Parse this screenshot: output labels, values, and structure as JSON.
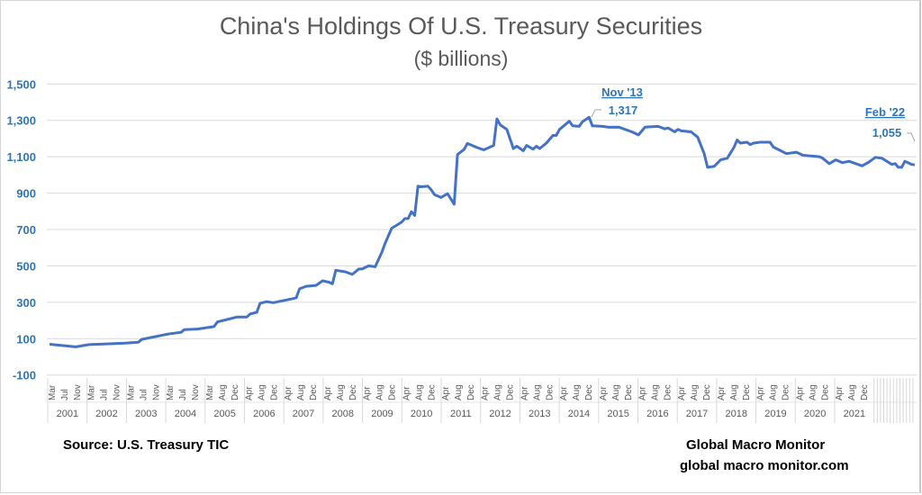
{
  "chart_data": {
    "type": "line",
    "title": "China's Holdings Of U.S. Treasury Securities",
    "subtitle": "($ billions)",
    "ylim": [
      -100,
      1500
    ],
    "yticks": [
      1500,
      1300,
      1100,
      900,
      700,
      500,
      300,
      100,
      -100
    ],
    "ytick_labels": [
      "1,500",
      "1,300",
      "1,100",
      "900",
      "700",
      "500",
      "300",
      "100",
      "-100"
    ],
    "xlim": [
      "2000-03",
      "2022-02"
    ],
    "grid": true,
    "line_color": "#4472c4",
    "label_color": "#2e75b6",
    "x_axis": [
      {
        "year": "2001",
        "months": [
          "Mar",
          "Jul",
          "Nov"
        ]
      },
      {
        "year": "2002",
        "months": [
          "Mar",
          "Jul",
          "Nov"
        ]
      },
      {
        "year": "2003",
        "months": [
          "Mar",
          "Jul",
          "Nov"
        ]
      },
      {
        "year": "2004",
        "months": [
          "Mar",
          "Jul",
          "Nov"
        ]
      },
      {
        "year": "2005",
        "months": [
          "Mar",
          "Aug",
          "Dec"
        ]
      },
      {
        "year": "2006",
        "months": [
          "Apr",
          "Aug",
          "Dec"
        ]
      },
      {
        "year": "2007",
        "months": [
          "Apr",
          "Aug",
          "Dec"
        ]
      },
      {
        "year": "2008",
        "months": [
          "Apr",
          "Aug",
          "Dec"
        ]
      },
      {
        "year": "2009",
        "months": [
          "Apr",
          "Aug",
          "Dec"
        ]
      },
      {
        "year": "2010",
        "months": [
          "Apr",
          "Aug",
          "Dec"
        ]
      },
      {
        "year": "2011",
        "months": [
          "Apr",
          "Aug",
          "Dec"
        ]
      },
      {
        "year": "2012",
        "months": [
          "Apr",
          "Aug",
          "Dec"
        ]
      },
      {
        "year": "2013",
        "months": [
          "Apr",
          "Aug",
          "Dec"
        ]
      },
      {
        "year": "2014",
        "months": [
          "Apr",
          "Aug",
          "Dec"
        ]
      },
      {
        "year": "2015",
        "months": [
          "Apr",
          "Aug",
          "Dec"
        ]
      },
      {
        "year": "2016",
        "months": [
          "Apr",
          "Aug",
          "Dec"
        ]
      },
      {
        "year": "2017",
        "months": [
          "Apr",
          "Aug",
          "Dec"
        ]
      },
      {
        "year": "2018",
        "months": [
          "Apr",
          "Aug",
          "Dec"
        ]
      },
      {
        "year": "2019",
        "months": [
          "Apr",
          "Aug",
          "Dec"
        ]
      },
      {
        "year": "2020",
        "months": [
          "Apr",
          "Aug",
          "Dec"
        ]
      },
      {
        "year": "2021",
        "months": [
          "Apr",
          "Aug",
          "Dec"
        ]
      }
    ],
    "series": [
      {
        "points": [
          [
            "2000-03",
            69
          ],
          [
            "2000-11",
            55
          ],
          [
            "2001-03",
            67
          ],
          [
            "2002-02",
            75
          ],
          [
            "2002-06",
            80
          ],
          [
            "2002-07",
            96
          ],
          [
            "2003-03",
            125
          ],
          [
            "2003-07",
            135
          ],
          [
            "2003-08",
            150
          ],
          [
            "2003-12",
            153
          ],
          [
            "2004-05",
            166
          ],
          [
            "2004-06",
            192
          ],
          [
            "2004-12",
            219
          ],
          [
            "2005-03",
            219
          ],
          [
            "2005-04",
            236
          ],
          [
            "2005-06",
            245
          ],
          [
            "2005-07",
            295
          ],
          [
            "2005-09",
            303
          ],
          [
            "2005-11",
            298
          ],
          [
            "2006-05",
            320
          ],
          [
            "2006-06",
            325
          ],
          [
            "2006-07",
            374
          ],
          [
            "2006-09",
            388
          ],
          [
            "2006-12",
            393
          ],
          [
            "2007-02",
            418
          ],
          [
            "2007-04",
            410
          ],
          [
            "2007-05",
            401
          ],
          [
            "2007-06",
            476
          ],
          [
            "2007-09",
            467
          ],
          [
            "2007-11",
            453
          ],
          [
            "2008-01",
            483
          ],
          [
            "2008-02",
            483
          ],
          [
            "2008-04",
            500
          ],
          [
            "2008-06",
            495
          ],
          [
            "2008-08",
            575
          ],
          [
            "2008-09",
            624
          ],
          [
            "2008-11",
            707
          ],
          [
            "2009-02",
            740
          ],
          [
            "2009-03",
            760
          ],
          [
            "2009-04",
            760
          ],
          [
            "2009-05",
            798
          ],
          [
            "2009-06",
            777
          ],
          [
            "2009-07",
            938
          ],
          [
            "2009-08",
            935
          ],
          [
            "2009-10",
            938
          ],
          [
            "2009-11",
            918
          ],
          [
            "2009-12",
            892
          ],
          [
            "2010-02",
            876
          ],
          [
            "2010-04",
            897
          ],
          [
            "2010-06",
            839
          ],
          [
            "2010-07",
            1112
          ],
          [
            "2010-09",
            1140
          ],
          [
            "2010-10",
            1173
          ],
          [
            "2011-01",
            1150
          ],
          [
            "2011-03",
            1138
          ],
          [
            "2011-06",
            1162
          ],
          [
            "2011-07",
            1308
          ],
          [
            "2011-08",
            1275
          ],
          [
            "2011-10",
            1250
          ],
          [
            "2011-12",
            1145
          ],
          [
            "2012-01",
            1158
          ],
          [
            "2012-03",
            1133
          ],
          [
            "2012-04",
            1162
          ],
          [
            "2012-06",
            1142
          ],
          [
            "2012-07",
            1158
          ],
          [
            "2012-08",
            1145
          ],
          [
            "2012-10",
            1175
          ],
          [
            "2012-12",
            1217
          ],
          [
            "2013-01",
            1217
          ],
          [
            "2013-02",
            1250
          ],
          [
            "2013-05",
            1295
          ],
          [
            "2013-06",
            1270
          ],
          [
            "2013-08",
            1267
          ],
          [
            "2013-09",
            1292
          ],
          [
            "2013-11",
            1317
          ],
          [
            "2013-12",
            1270
          ],
          [
            "2014-03",
            1267
          ],
          [
            "2014-05",
            1262
          ],
          [
            "2014-08",
            1263
          ],
          [
            "2014-12",
            1237
          ],
          [
            "2015-02",
            1220
          ],
          [
            "2015-04",
            1263
          ],
          [
            "2015-08",
            1267
          ],
          [
            "2015-10",
            1253
          ],
          [
            "2015-11",
            1258
          ],
          [
            "2016-01",
            1237
          ],
          [
            "2016-02",
            1250
          ],
          [
            "2016-03",
            1242
          ],
          [
            "2016-06",
            1237
          ],
          [
            "2016-08",
            1208
          ],
          [
            "2016-10",
            1117
          ],
          [
            "2016-11",
            1042
          ],
          [
            "2017-01",
            1047
          ],
          [
            "2017-03",
            1083
          ],
          [
            "2017-05",
            1092
          ],
          [
            "2017-07",
            1150
          ],
          [
            "2017-08",
            1192
          ],
          [
            "2017-09",
            1175
          ],
          [
            "2017-11",
            1180
          ],
          [
            "2017-12",
            1167
          ],
          [
            "2018-01",
            1175
          ],
          [
            "2018-03",
            1180
          ],
          [
            "2018-06",
            1180
          ],
          [
            "2018-07",
            1153
          ],
          [
            "2018-11",
            1117
          ],
          [
            "2019-02",
            1125
          ],
          [
            "2019-04",
            1108
          ],
          [
            "2019-09",
            1100
          ],
          [
            "2019-10",
            1092
          ],
          [
            "2019-12",
            1062
          ],
          [
            "2020-02",
            1083
          ],
          [
            "2020-04",
            1067
          ],
          [
            "2020-06",
            1075
          ],
          [
            "2020-10",
            1050
          ],
          [
            "2020-12",
            1070
          ],
          [
            "2021-02",
            1097
          ],
          [
            "2021-04",
            1092
          ],
          [
            "2021-07",
            1058
          ],
          [
            "2021-08",
            1062
          ],
          [
            "2021-09",
            1042
          ],
          [
            "2021-10",
            1042
          ],
          [
            "2021-11",
            1075
          ],
          [
            "2022-01",
            1058
          ],
          [
            "2022-02",
            1055
          ]
        ]
      }
    ],
    "annotations": [
      {
        "date": "Nov '13",
        "value": "1,317"
      },
      {
        "date": "Feb '22",
        "value": "1,055"
      }
    ]
  },
  "footer": {
    "source": "Source:  U.S. Treasury TIC",
    "brand": "Global Macro Monitor",
    "website": "global macro monitor.com"
  }
}
